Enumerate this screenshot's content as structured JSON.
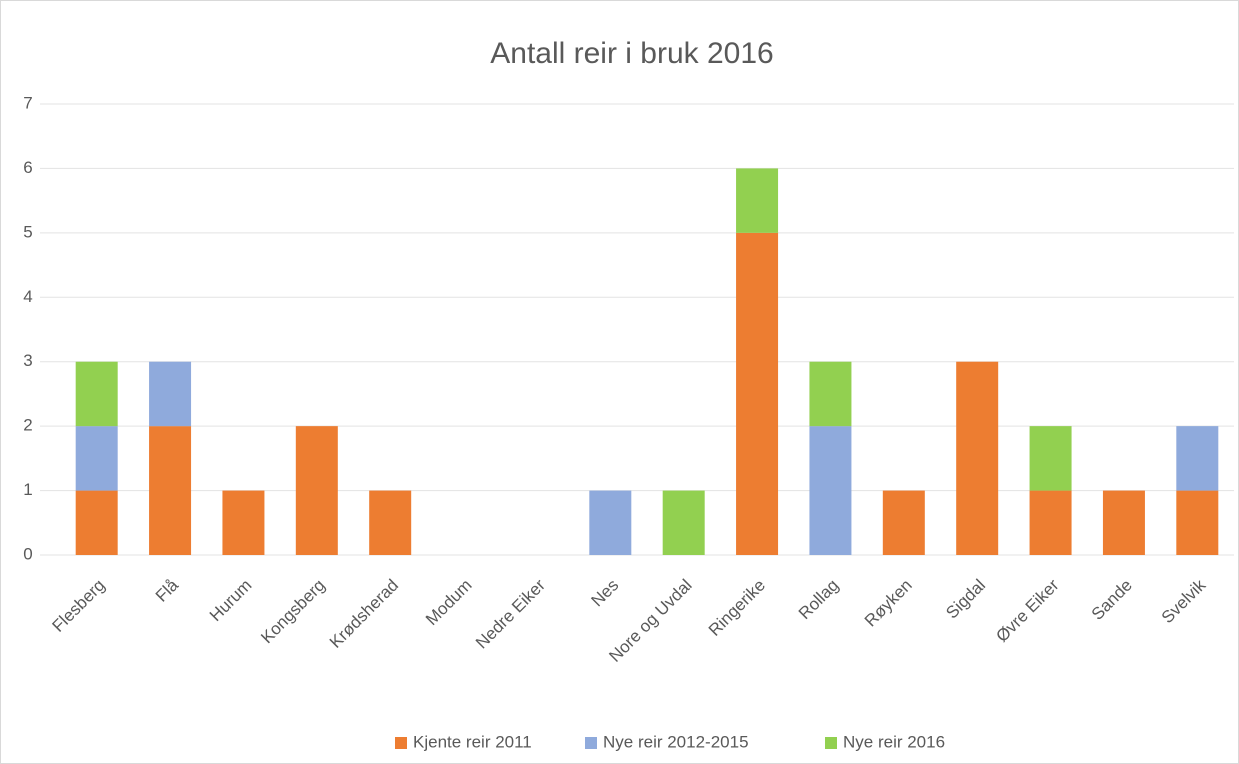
{
  "chart_data": {
    "type": "stacked_bar",
    "title": "Antall reir i bruk 2016",
    "categories": [
      "Flesberg",
      "Flå",
      "Hurum",
      "Kongsberg",
      "Krødsherad",
      "Modum",
      "Nedre Eiker",
      "Nes",
      "Nore og Uvdal",
      "Ringerike",
      "Rollag",
      "Røyken",
      "Sigdal",
      "Øvre Eiker",
      "Sande",
      "Svelvik"
    ],
    "series": [
      {
        "name": "Kjente reir 2011",
        "color": "#ed7d31",
        "values": [
          1,
          2,
          1,
          2,
          1,
          0,
          0,
          0,
          0,
          5,
          0,
          1,
          3,
          1,
          1,
          1
        ]
      },
      {
        "name": "Nye reir 2012-2015",
        "color": "#8faadc",
        "values": [
          1,
          1,
          0,
          0,
          0,
          0,
          0,
          1,
          0,
          0,
          2,
          0,
          0,
          0,
          0,
          1
        ]
      },
      {
        "name": "Nye reir 2016",
        "color": "#92d050",
        "values": [
          1,
          0,
          0,
          0,
          0,
          0,
          0,
          0,
          1,
          1,
          1,
          0,
          0,
          1,
          0,
          0
        ]
      }
    ],
    "ylim": [
      0,
      7
    ],
    "yticks": [
      0,
      1,
      2,
      3,
      4,
      5,
      6,
      7
    ],
    "grid": true,
    "legend": "bottom"
  }
}
